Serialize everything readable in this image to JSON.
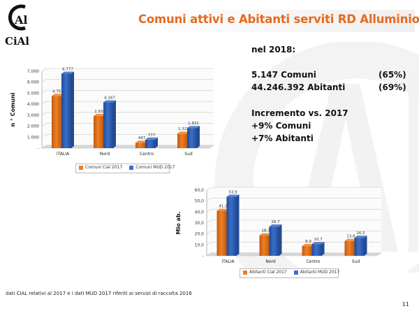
{
  "header": {
    "title": "Comuni attivi e Abitanti serviti RD Alluminio",
    "logo_top": "Al",
    "logo_bottom": "CiAl"
  },
  "stats": {
    "heading": "nel 2018:",
    "comuni_value": "5.147 Comuni",
    "comuni_pct": "(65%)",
    "abitanti_value": "44.246.392 Abitanti",
    "abitanti_pct": "(69%)",
    "increment_heading": "Incremento vs. 2017",
    "increment_comuni": "+9% Comuni",
    "increment_abitanti": "+7% Abitanti"
  },
  "colors": {
    "series1": "#f07f24",
    "series1_dark": "#c05b10",
    "series2": "#3a6fc9",
    "series2_dark": "#224a96",
    "title": "#e86a1e"
  },
  "chart_data": [
    {
      "type": "bar",
      "categories": [
        "ITALIA",
        "Nord",
        "Centro",
        "Sud"
      ],
      "series": [
        {
          "name": "Comuni Cial 2017",
          "values": [
            4755,
            2936,
            497,
            1322
          ],
          "labels": [
            "4.755",
            "2.936",
            "497",
            "1.322"
          ]
        },
        {
          "name": "Comuni MUD 2017",
          "values": [
            6777,
            4167,
            777,
            1831
          ],
          "labels": [
            "6.777",
            "4.167",
            "777",
            "1.831"
          ]
        }
      ],
      "ylabel": "n ° Comuni",
      "ylim": [
        0,
        7000
      ],
      "yticks": [
        0,
        1000,
        2000,
        3000,
        4000,
        5000,
        6000,
        7000
      ],
      "ytick_labels": [
        "-",
        "1.000",
        "2.000",
        "3.000",
        "4.000",
        "5.000",
        "6.000",
        "7.000"
      ],
      "grid": true,
      "legend": "bottom"
    },
    {
      "type": "bar",
      "categories": [
        "ITALIA",
        "Nord",
        "Centro",
        "Sud"
      ],
      "series": [
        {
          "name": "Abitanti Cial 2017",
          "values": [
            41.1,
            18.7,
            8.9,
            13.6
          ],
          "labels": [
            "41,1",
            "18,7",
            "8,9",
            "13,6"
          ]
        },
        {
          "name": "Abitanti MUD 2017",
          "values": [
            53.9,
            26.7,
            10.7,
            16.5
          ],
          "labels": [
            "53,9",
            "26,7",
            "10,7",
            "16,5"
          ]
        }
      ],
      "ylabel": "Mio ab.",
      "ylim": [
        0,
        60
      ],
      "yticks": [
        0,
        10,
        20,
        30,
        40,
        50,
        60
      ],
      "ytick_labels": [
        "-",
        "10,0",
        "20,0",
        "30,0",
        "40,0",
        "50,0",
        "60,0"
      ],
      "grid": true,
      "legend": "bottom"
    }
  ],
  "footer": {
    "note": "dati CIAL relativi al 2017 e i dati MUD 2017 riferiti ai servizi di raccolta 2016",
    "page_number": "11"
  }
}
